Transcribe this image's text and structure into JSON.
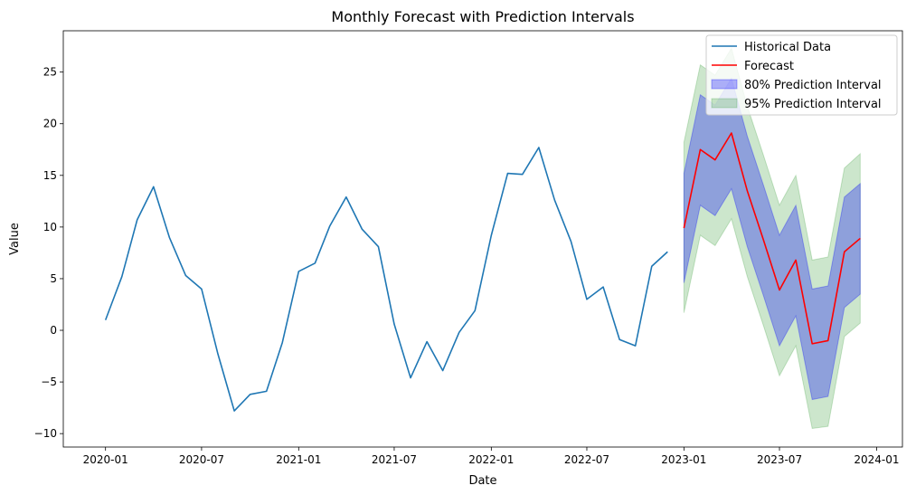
{
  "chart_data": {
    "type": "line",
    "title": "Monthly Forecast with Prediction Intervals",
    "xlabel": "Date",
    "ylabel": "Value",
    "ylim": [
      -11.3,
      29.0
    ],
    "x_range": [
      "2019-10-13",
      "2024-02-19"
    ],
    "x_ticks": [
      "2020-01",
      "2020-07",
      "2021-01",
      "2021-07",
      "2022-01",
      "2022-07",
      "2023-01",
      "2023-07",
      "2024-01"
    ],
    "y_ticks": [
      -10,
      -5,
      0,
      5,
      10,
      15,
      20,
      25
    ],
    "grid": false,
    "legend_position": "top-right",
    "legend": [
      {
        "label": "Historical Data",
        "kind": "line",
        "color": "#1f77b4"
      },
      {
        "label": "Forecast",
        "kind": "line",
        "color": "#ff0000"
      },
      {
        "label": "80% Prediction Interval",
        "kind": "patch",
        "color": "#0000ff",
        "opacity": 0.3
      },
      {
        "label": "95% Prediction Interval",
        "kind": "patch",
        "color": "#008000",
        "opacity": 0.2
      }
    ],
    "historical": {
      "name": "Historical Data",
      "color": "#1f77b4",
      "x": [
        "2020-01",
        "2020-02",
        "2020-03",
        "2020-04",
        "2020-05",
        "2020-06",
        "2020-07",
        "2020-08",
        "2020-09",
        "2020-10",
        "2020-11",
        "2020-12",
        "2021-01",
        "2021-02",
        "2021-03",
        "2021-04",
        "2021-05",
        "2021-06",
        "2021-07",
        "2021-08",
        "2021-09",
        "2021-10",
        "2021-11",
        "2021-12",
        "2022-01",
        "2022-02",
        "2022-03",
        "2022-04",
        "2022-05",
        "2022-06",
        "2022-07",
        "2022-08",
        "2022-09",
        "2022-10",
        "2022-11",
        "2022-12"
      ],
      "y": [
        1.0,
        5.2,
        10.7,
        13.9,
        9.0,
        5.3,
        4.0,
        -2.3,
        -7.8,
        -6.2,
        -5.9,
        -1.2,
        5.7,
        6.5,
        10.1,
        12.9,
        9.8,
        8.1,
        0.6,
        -4.6,
        -1.1,
        -3.9,
        -0.2,
        1.9,
        9.2,
        15.2,
        15.1,
        17.7,
        12.6,
        8.6,
        3.0,
        4.2,
        -0.9,
        -1.5,
        6.2,
        7.6
      ]
    },
    "forecast": {
      "name": "Forecast",
      "color": "#ff0000",
      "x": [
        "2023-01",
        "2023-02",
        "2023-03",
        "2023-04",
        "2023-05",
        "2023-06",
        "2023-07",
        "2023-08",
        "2023-09",
        "2023-10",
        "2023-11",
        "2023-12"
      ],
      "y": [
        9.9,
        17.5,
        16.5,
        19.1,
        13.5,
        8.7,
        3.9,
        6.8,
        -1.3,
        -1.0,
        7.6,
        8.9
      ],
      "pi80_lower": [
        4.6,
        12.1,
        11.1,
        13.7,
        8.1,
        3.3,
        -1.5,
        1.4,
        -6.7,
        -6.4,
        2.2,
        3.5
      ],
      "pi80_upper": [
        15.2,
        22.8,
        21.8,
        24.4,
        18.8,
        14.0,
        9.2,
        12.1,
        4.0,
        4.3,
        12.9,
        14.2
      ],
      "pi95_lower": [
        1.7,
        9.2,
        8.2,
        10.8,
        5.2,
        0.4,
        -4.4,
        -1.5,
        -9.5,
        -9.3,
        -0.6,
        0.7
      ],
      "pi95_upper": [
        18.2,
        25.7,
        24.7,
        27.3,
        21.7,
        16.9,
        12.1,
        15.0,
        6.8,
        7.1,
        15.7,
        17.1
      ]
    }
  }
}
